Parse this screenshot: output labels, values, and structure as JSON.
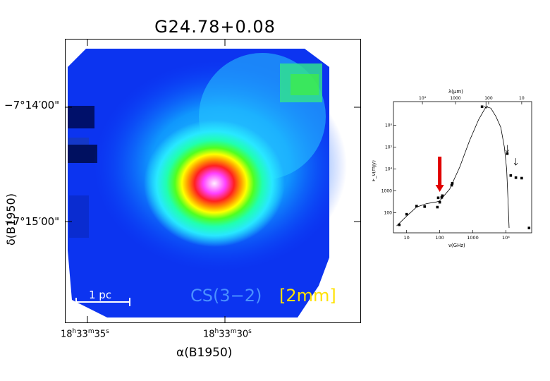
{
  "map": {
    "title": "G24.78+0.08",
    "dec_tick_1": "−7°14′00\"",
    "dec_tick_2": "−7°15′00\"",
    "y_axis_label": "δ(B1950)",
    "ra_tick_1": {
      "h": "18",
      "m": "33",
      "s": "35"
    },
    "ra_tick_2": {
      "h": "18",
      "m": "33",
      "s": "30"
    },
    "x_axis_label": "α(B1950)",
    "scale_bar_label": "1 pc",
    "line_label": "CS(3−2)",
    "band_label": "[2mm]",
    "colors": {
      "line_label": "#4a90ff",
      "band_label": "#ffe100",
      "scale_bar": "#ffffff"
    }
  },
  "chart_data": {
    "type": "scatter",
    "xlabel": "ν(GHz)",
    "ylabel": "F_ν(mJy)",
    "top_axis_label": "λ(μm)",
    "x_scale": "log",
    "y_scale": "log",
    "x_tick_labels": [
      "10",
      "100",
      "1000",
      "10⁴"
    ],
    "y_tick_labels": [
      "100",
      "1000",
      "10⁴",
      "10⁵",
      "10⁶"
    ],
    "top_tick_labels": [
      "10⁴",
      "1000",
      "100",
      "10"
    ],
    "points": [
      {
        "x": 6,
        "y": 28
      },
      {
        "x": 10,
        "y": 85
      },
      {
        "x": 20,
        "y": 200
      },
      {
        "x": 35,
        "y": 190
      },
      {
        "x": 85,
        "y": 180
      },
      {
        "x": 90,
        "y": 480
      },
      {
        "x": 100,
        "y": 300
      },
      {
        "x": 115,
        "y": 500
      },
      {
        "x": 120,
        "y": 600
      },
      {
        "x": 230,
        "y": 1800
      },
      {
        "x": 240,
        "y": 2200
      },
      {
        "x": 1900,
        "y": 7000000
      },
      {
        "x": 11000,
        "y": 50000
      },
      {
        "x": 14000,
        "y": 5000
      },
      {
        "x": 20000,
        "y": 4000
      },
      {
        "x": 30000,
        "y": 3800
      },
      {
        "x": 50000,
        "y": 20
      }
    ],
    "model_curve": [
      [
        5,
        25
      ],
      [
        10,
        70
      ],
      [
        20,
        180
      ],
      [
        40,
        260
      ],
      [
        80,
        310
      ],
      [
        100,
        350
      ],
      [
        200,
        1200
      ],
      [
        400,
        12000
      ],
      [
        800,
        200000
      ],
      [
        1500,
        1800000
      ],
      [
        2500,
        7000000
      ],
      [
        3500,
        6000000
      ],
      [
        5000,
        2500000
      ],
      [
        7000,
        800000
      ],
      [
        9000,
        100000
      ],
      [
        10500,
        10000
      ],
      [
        11500,
        500
      ],
      [
        12500,
        20
      ]
    ],
    "upper_limits": [
      {
        "x": 2500,
        "y": 8000000
      },
      {
        "x": 11000,
        "y": 80000
      },
      {
        "x": 20000,
        "y": 20000
      }
    ],
    "marker_arrow": {
      "x": 100,
      "color": "#e00000"
    }
  }
}
